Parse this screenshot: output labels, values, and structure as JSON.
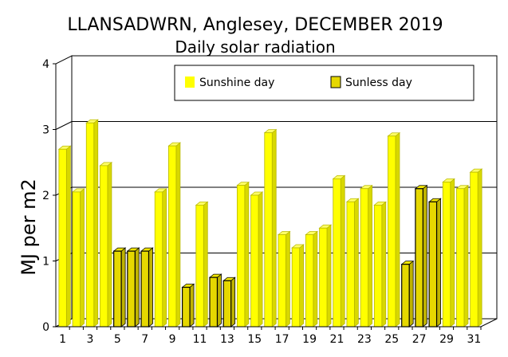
{
  "chart_data": {
    "type": "bar",
    "title": "LLANSADWRN, Anglesey, DECEMBER 2019",
    "subtitle": "Daily solar radiation",
    "xlabel": "",
    "ylabel": "MJ per m2",
    "ylim": [
      0,
      4
    ],
    "yticks": [
      "0",
      "1",
      "2",
      "3",
      "4"
    ],
    "xticks": [
      "1",
      "3",
      "5",
      "7",
      "9",
      "11",
      "13",
      "15",
      "17",
      "19",
      "21",
      "23",
      "25",
      "27",
      "29",
      "31"
    ],
    "grid": true,
    "legend_position": "top-right",
    "colors": {
      "sunshine": "#ffff00",
      "sunless": "#e6d800"
    },
    "legend": [
      {
        "key": "sunshine",
        "label": "Sunshine day"
      },
      {
        "key": "sunless",
        "label": "Sunless day"
      }
    ],
    "days": [
      1,
      2,
      3,
      4,
      5,
      6,
      7,
      8,
      9,
      10,
      11,
      12,
      13,
      14,
      15,
      16,
      17,
      18,
      19,
      20,
      21,
      22,
      23,
      24,
      25,
      26,
      27,
      28,
      29,
      30,
      31
    ],
    "values": [
      2.7,
      2.05,
      3.1,
      2.45,
      1.15,
      1.15,
      1.15,
      2.05,
      2.75,
      0.6,
      1.85,
      0.75,
      0.7,
      2.15,
      2.0,
      2.95,
      1.4,
      1.2,
      1.4,
      1.5,
      2.25,
      1.9,
      2.1,
      1.85,
      2.9,
      0.95,
      2.1,
      1.9,
      2.2,
      2.1,
      2.35
    ],
    "sunless_days": [
      5,
      6,
      7,
      10,
      12,
      13,
      26,
      27,
      28
    ]
  }
}
